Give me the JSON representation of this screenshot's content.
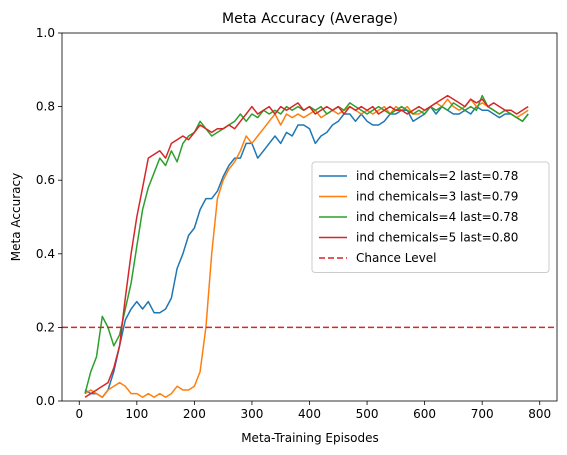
{
  "chart_data": {
    "type": "line",
    "title": "Meta Accuracy (Average)",
    "xlabel": "Meta-Training Episodes",
    "ylabel": "Meta Accuracy",
    "xlim": [
      -30,
      830
    ],
    "ylim": [
      0,
      1.0
    ],
    "xticks": [
      0,
      100,
      200,
      300,
      400,
      500,
      600,
      700,
      800
    ],
    "yticks": [
      0.0,
      0.2,
      0.4,
      0.6,
      0.8,
      1.0
    ],
    "xtick_labels": [
      "0",
      "100",
      "200",
      "300",
      "400",
      "500",
      "600",
      "700",
      "800"
    ],
    "ytick_labels": [
      "0.0",
      "0.2",
      "0.4",
      "0.6",
      "0.8",
      "1.0"
    ],
    "grid": false,
    "legend_position": "center-right",
    "series": [
      {
        "name": "ind chemicals=2 last=0.78",
        "color": "#1f77b4",
        "x": [
          10,
          20,
          30,
          40,
          50,
          60,
          70,
          80,
          90,
          100,
          110,
          120,
          130,
          140,
          150,
          160,
          170,
          180,
          190,
          200,
          210,
          220,
          230,
          240,
          250,
          260,
          270,
          280,
          290,
          300,
          310,
          320,
          330,
          340,
          350,
          360,
          370,
          380,
          390,
          400,
          410,
          420,
          430,
          440,
          450,
          460,
          470,
          480,
          490,
          500,
          510,
          520,
          530,
          540,
          550,
          560,
          570,
          580,
          590,
          600,
          610,
          620,
          630,
          640,
          650,
          660,
          670,
          680,
          690,
          700,
          710,
          720,
          730,
          740,
          750,
          760,
          770,
          780
        ],
        "y": [
          0.03,
          0.02,
          0.02,
          0.01,
          0.03,
          0.08,
          0.15,
          0.22,
          0.25,
          0.27,
          0.25,
          0.27,
          0.24,
          0.24,
          0.25,
          0.28,
          0.36,
          0.4,
          0.45,
          0.47,
          0.52,
          0.55,
          0.55,
          0.57,
          0.61,
          0.64,
          0.66,
          0.66,
          0.7,
          0.7,
          0.66,
          0.68,
          0.7,
          0.72,
          0.7,
          0.73,
          0.72,
          0.75,
          0.75,
          0.74,
          0.7,
          0.72,
          0.73,
          0.75,
          0.76,
          0.78,
          0.78,
          0.76,
          0.78,
          0.76,
          0.75,
          0.75,
          0.76,
          0.78,
          0.78,
          0.79,
          0.79,
          0.76,
          0.77,
          0.78,
          0.8,
          0.78,
          0.8,
          0.79,
          0.78,
          0.78,
          0.79,
          0.78,
          0.8,
          0.79,
          0.79,
          0.78,
          0.77,
          0.78,
          0.78,
          0.77,
          0.76,
          0.78
        ]
      },
      {
        "name": "ind chemicals=3 last=0.79",
        "color": "#ff7f0e",
        "x": [
          10,
          20,
          30,
          40,
          50,
          60,
          70,
          80,
          90,
          100,
          110,
          120,
          130,
          140,
          150,
          160,
          170,
          180,
          190,
          200,
          210,
          220,
          230,
          240,
          250,
          260,
          270,
          280,
          290,
          300,
          310,
          320,
          330,
          340,
          350,
          360,
          370,
          380,
          390,
          400,
          410,
          420,
          430,
          440,
          450,
          460,
          470,
          480,
          490,
          500,
          510,
          520,
          530,
          540,
          550,
          560,
          570,
          580,
          590,
          600,
          610,
          620,
          630,
          640,
          650,
          660,
          670,
          680,
          690,
          700,
          710,
          720,
          730,
          740,
          750,
          760,
          770,
          780
        ],
        "y": [
          0.02,
          0.03,
          0.02,
          0.01,
          0.03,
          0.04,
          0.05,
          0.04,
          0.02,
          0.02,
          0.01,
          0.02,
          0.01,
          0.02,
          0.01,
          0.02,
          0.04,
          0.03,
          0.03,
          0.04,
          0.08,
          0.2,
          0.4,
          0.55,
          0.6,
          0.63,
          0.65,
          0.68,
          0.72,
          0.7,
          0.72,
          0.74,
          0.76,
          0.78,
          0.75,
          0.78,
          0.77,
          0.78,
          0.77,
          0.78,
          0.79,
          0.77,
          0.78,
          0.79,
          0.78,
          0.79,
          0.8,
          0.79,
          0.78,
          0.79,
          0.78,
          0.79,
          0.8,
          0.78,
          0.8,
          0.79,
          0.8,
          0.78,
          0.78,
          0.79,
          0.8,
          0.81,
          0.8,
          0.82,
          0.8,
          0.79,
          0.8,
          0.82,
          0.8,
          0.81,
          0.8,
          0.79,
          0.78,
          0.79,
          0.78,
          0.77,
          0.78,
          0.79
        ]
      },
      {
        "name": "ind chemicals=4 last=0.78",
        "color": "#2ca02c",
        "x": [
          10,
          20,
          30,
          40,
          50,
          60,
          70,
          80,
          90,
          100,
          110,
          120,
          130,
          140,
          150,
          160,
          170,
          180,
          190,
          200,
          210,
          220,
          230,
          240,
          250,
          260,
          270,
          280,
          290,
          300,
          310,
          320,
          330,
          340,
          350,
          360,
          370,
          380,
          390,
          400,
          410,
          420,
          430,
          440,
          450,
          460,
          470,
          480,
          490,
          500,
          510,
          520,
          530,
          540,
          550,
          560,
          570,
          580,
          590,
          600,
          610,
          620,
          630,
          640,
          650,
          660,
          670,
          680,
          690,
          700,
          710,
          720,
          730,
          740,
          750,
          760,
          770,
          780
        ],
        "y": [
          0.02,
          0.08,
          0.12,
          0.23,
          0.2,
          0.15,
          0.18,
          0.25,
          0.32,
          0.42,
          0.52,
          0.58,
          0.62,
          0.66,
          0.64,
          0.68,
          0.65,
          0.7,
          0.72,
          0.73,
          0.76,
          0.74,
          0.72,
          0.73,
          0.74,
          0.75,
          0.76,
          0.78,
          0.76,
          0.78,
          0.77,
          0.79,
          0.78,
          0.79,
          0.78,
          0.8,
          0.79,
          0.8,
          0.79,
          0.8,
          0.79,
          0.8,
          0.78,
          0.79,
          0.8,
          0.79,
          0.81,
          0.8,
          0.79,
          0.78,
          0.79,
          0.8,
          0.79,
          0.78,
          0.79,
          0.8,
          0.79,
          0.78,
          0.79,
          0.78,
          0.8,
          0.79,
          0.8,
          0.79,
          0.81,
          0.8,
          0.79,
          0.8,
          0.79,
          0.83,
          0.8,
          0.79,
          0.78,
          0.79,
          0.78,
          0.77,
          0.76,
          0.78
        ]
      },
      {
        "name": "ind chemicals=5 last=0.80",
        "color": "#d62728",
        "x": [
          10,
          20,
          30,
          40,
          50,
          60,
          70,
          80,
          90,
          100,
          110,
          120,
          130,
          140,
          150,
          160,
          170,
          180,
          190,
          200,
          210,
          220,
          230,
          240,
          250,
          260,
          270,
          280,
          290,
          300,
          310,
          320,
          330,
          340,
          350,
          360,
          370,
          380,
          390,
          400,
          410,
          420,
          430,
          440,
          450,
          460,
          470,
          480,
          490,
          500,
          510,
          520,
          530,
          540,
          550,
          560,
          570,
          580,
          590,
          600,
          610,
          620,
          630,
          640,
          650,
          660,
          670,
          680,
          690,
          700,
          710,
          720,
          730,
          740,
          750,
          760,
          770,
          780
        ],
        "y": [
          0.01,
          0.02,
          0.03,
          0.04,
          0.05,
          0.09,
          0.15,
          0.28,
          0.4,
          0.5,
          0.58,
          0.66,
          0.67,
          0.68,
          0.66,
          0.7,
          0.71,
          0.72,
          0.71,
          0.73,
          0.75,
          0.74,
          0.73,
          0.74,
          0.74,
          0.75,
          0.74,
          0.76,
          0.78,
          0.8,
          0.78,
          0.79,
          0.8,
          0.78,
          0.8,
          0.79,
          0.8,
          0.81,
          0.79,
          0.8,
          0.78,
          0.79,
          0.8,
          0.79,
          0.8,
          0.78,
          0.8,
          0.79,
          0.8,
          0.79,
          0.8,
          0.78,
          0.79,
          0.8,
          0.79,
          0.79,
          0.78,
          0.79,
          0.8,
          0.79,
          0.8,
          0.81,
          0.82,
          0.83,
          0.82,
          0.81,
          0.8,
          0.82,
          0.81,
          0.82,
          0.8,
          0.81,
          0.8,
          0.79,
          0.79,
          0.78,
          0.79,
          0.8
        ]
      },
      {
        "name": "Chance Level",
        "color": "#d62728",
        "dashed": true,
        "constant": 0.2
      }
    ]
  }
}
